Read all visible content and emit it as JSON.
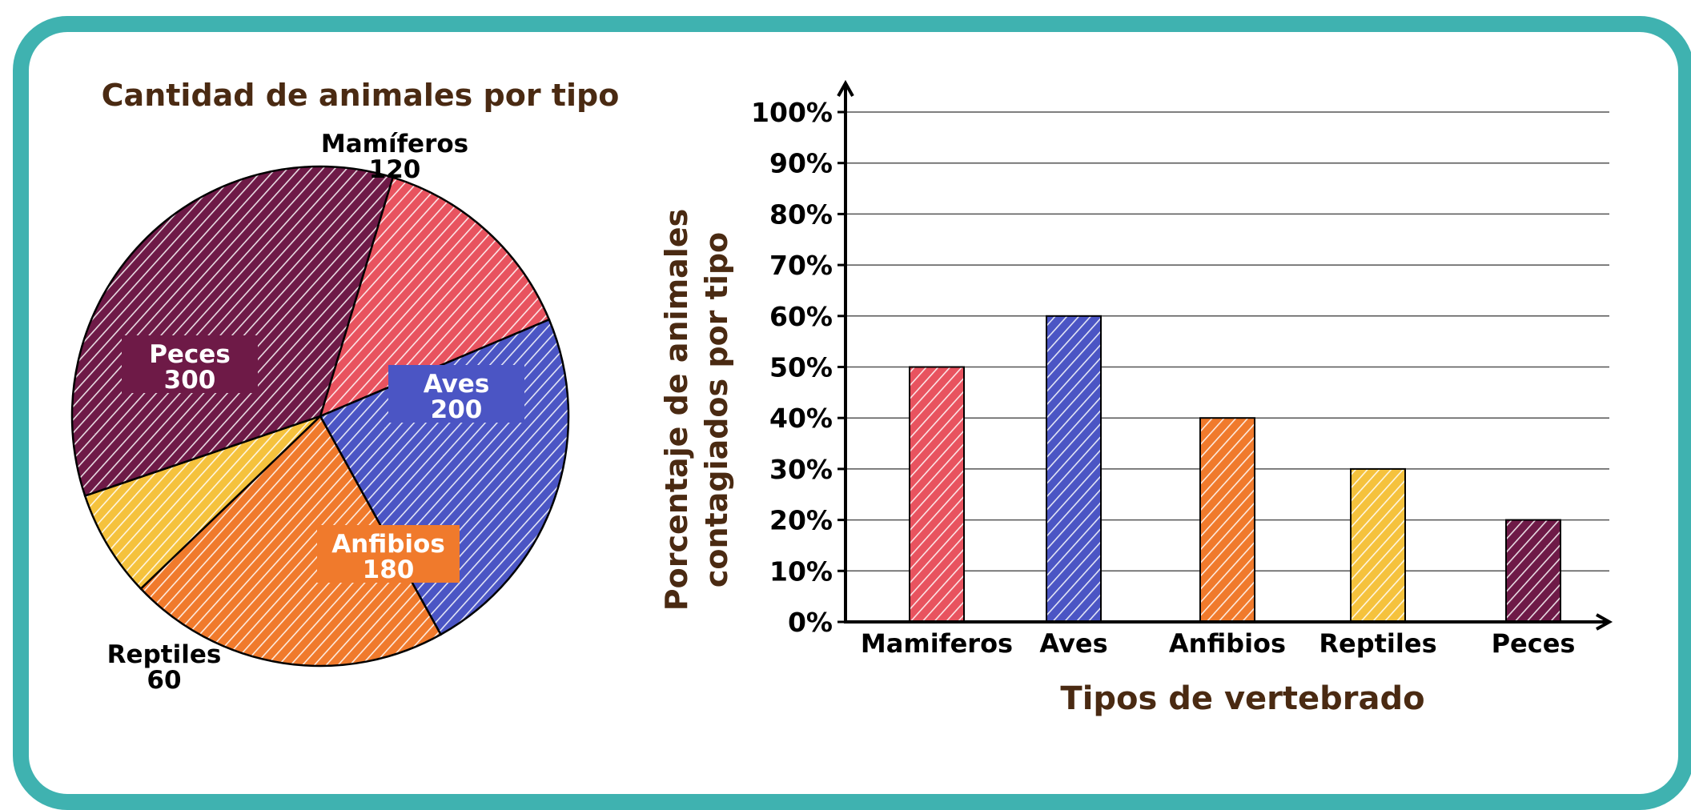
{
  "colors": {
    "border": "#3fb2b0",
    "title_brown": "#4a2a12",
    "mamiferos": "#e8535f",
    "aves": "#4b55c4",
    "anfibios": "#f07a2c",
    "reptiles": "#f5c23d",
    "peces": "#6e1a47"
  },
  "chart_data": [
    {
      "type": "pie",
      "title": "Cantidad de animales por tipo",
      "slices": [
        {
          "name": "Mamíferos",
          "value": 120,
          "color": "#e8535f",
          "label": "Mamíferos",
          "value_label": "120"
        },
        {
          "name": "Aves",
          "value": 200,
          "color": "#4b55c4",
          "label": "Aves",
          "value_label": "200"
        },
        {
          "name": "Anfibios",
          "value": 180,
          "color": "#f07a2c",
          "label": "Anfibios",
          "value_label": "180"
        },
        {
          "name": "Reptiles",
          "value": 60,
          "color": "#f5c23d",
          "label": "Reptiles",
          "value_label": "60"
        },
        {
          "name": "Peces",
          "value": 300,
          "color": "#6e1a47",
          "label": "Peces",
          "value_label": "300"
        }
      ]
    },
    {
      "type": "bar",
      "categories": [
        "Mamiferos",
        "Aves",
        "Anfibios",
        "Reptiles",
        "Peces"
      ],
      "values": [
        50,
        60,
        40,
        30,
        20
      ],
      "colors": [
        "#e8535f",
        "#4b55c4",
        "#f07a2c",
        "#f5c23d",
        "#6e1a47"
      ],
      "xlabel": "Tipos de vertebrado",
      "ylabel_lines": [
        "Porcentaje de animales",
        "contagiados por tipo"
      ],
      "ylim": [
        0,
        100
      ],
      "yticks": [
        0,
        10,
        20,
        30,
        40,
        50,
        60,
        70,
        80,
        90,
        100
      ],
      "ytick_labels": [
        "0%",
        "10%",
        "20%",
        "30%",
        "40%",
        "50%",
        "60%",
        "70%",
        "80%",
        "90%",
        "100%"
      ],
      "grid": true
    }
  ]
}
